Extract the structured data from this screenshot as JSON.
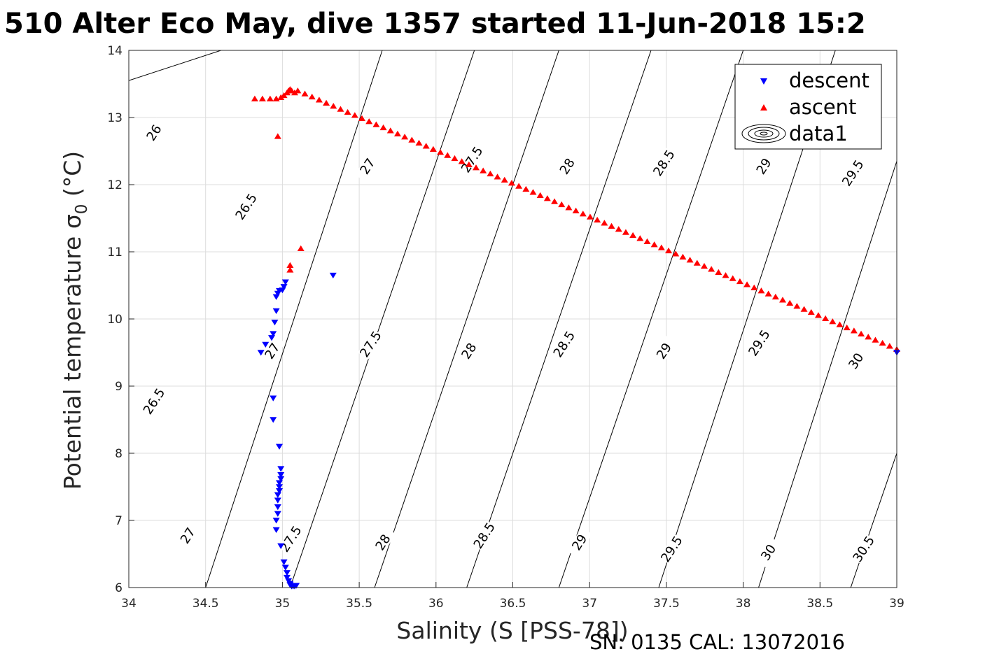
{
  "chart_data": {
    "type": "scatter",
    "title": "510 Alter Eco May, dive 1357 started 11-Jun-2018 15:2",
    "xlabel": "Salinity (S [PSS-78])",
    "ylabel_text": "Potential temperature σ",
    "ylabel_sub": "0",
    "ylabel_unit": " (°C)",
    "footer": "SN: 0135  CAL: 13072016",
    "xlim": [
      34,
      39
    ],
    "ylim": [
      6,
      14
    ],
    "xticks": [
      34,
      34.5,
      35,
      35.5,
      36,
      36.5,
      37,
      37.5,
      38,
      38.5,
      39
    ],
    "xtick_labels": [
      "34",
      "34.5",
      "35",
      "35.5",
      "36",
      "36.5",
      "37",
      "37.5",
      "38",
      "38.5",
      "39"
    ],
    "yticks": [
      6,
      7,
      8,
      9,
      10,
      11,
      12,
      13,
      14
    ],
    "ytick_labels": [
      "6",
      "7",
      "8",
      "9",
      "10",
      "11",
      "12",
      "13",
      "14"
    ],
    "grid": true,
    "legend_position": "top-right",
    "colors": {
      "descent": "#0000ff",
      "ascent": "#ff0000",
      "contour": "#000000",
      "grid": "#dcdcdc",
      "axis": "#262626"
    },
    "series": [
      {
        "name": "descent",
        "marker": "triangle-down",
        "color": "#0000ff",
        "points": [
          [
            35.33,
            10.65
          ],
          [
            35.02,
            10.55
          ],
          [
            35.01,
            10.48
          ],
          [
            35.0,
            10.43
          ],
          [
            34.98,
            10.42
          ],
          [
            34.97,
            10.38
          ],
          [
            34.96,
            10.33
          ],
          [
            34.96,
            10.12
          ],
          [
            34.95,
            9.95
          ],
          [
            34.94,
            9.78
          ],
          [
            34.93,
            9.72
          ],
          [
            34.89,
            9.62
          ],
          [
            34.86,
            9.5
          ],
          [
            34.94,
            8.82
          ],
          [
            34.94,
            8.5
          ],
          [
            34.98,
            8.1
          ],
          [
            34.99,
            7.77
          ],
          [
            34.99,
            7.68
          ],
          [
            34.99,
            7.62
          ],
          [
            34.98,
            7.56
          ],
          [
            34.98,
            7.5
          ],
          [
            34.98,
            7.44
          ],
          [
            34.97,
            7.38
          ],
          [
            34.97,
            7.3
          ],
          [
            34.97,
            7.2
          ],
          [
            34.97,
            7.1
          ],
          [
            34.96,
            7.0
          ],
          [
            34.96,
            6.86
          ],
          [
            34.99,
            6.62
          ],
          [
            35.01,
            6.38
          ],
          [
            35.02,
            6.3
          ],
          [
            35.03,
            6.22
          ],
          [
            35.03,
            6.15
          ],
          [
            35.04,
            6.1
          ],
          [
            35.05,
            6.06
          ],
          [
            35.05,
            6.04
          ],
          [
            35.06,
            6.02
          ],
          [
            35.07,
            6.02
          ],
          [
            35.08,
            6.02
          ],
          [
            35.09,
            6.03
          ],
          [
            39.0,
            9.5
          ]
        ]
      },
      {
        "name": "ascent",
        "marker": "triangle-up",
        "color": "#ff0000",
        "points": [
          [
            34.82,
            13.28
          ],
          [
            34.87,
            13.28
          ],
          [
            34.92,
            13.28
          ],
          [
            34.96,
            13.28
          ],
          [
            34.99,
            13.3
          ],
          [
            35.01,
            13.33
          ],
          [
            35.03,
            13.37
          ],
          [
            35.04,
            13.4
          ],
          [
            35.05,
            13.42
          ],
          [
            35.06,
            13.4
          ],
          [
            35.08,
            13.37
          ],
          [
            34.97,
            12.72
          ],
          [
            35.12,
            11.05
          ],
          [
            35.05,
            10.8
          ],
          [
            35.05,
            10.73
          ]
        ],
        "line": {
          "x_from": 35.1,
          "y_from": 13.4,
          "x_to": 39.0,
          "y_to": 9.55,
          "count": 84
        }
      }
    ],
    "contours": [
      {
        "level": "26",
        "from": [
          34.0,
          13.55
        ],
        "to": [
          34.6,
          14.0
        ],
        "label_at": [
          34.18,
          12.75
        ]
      },
      {
        "level": "26.5",
        "from": [
          34.5,
          6.0
        ],
        "to": [
          35.65,
          14.0
        ],
        "label_at": [
          34.78,
          11.65
        ]
      },
      {
        "level": "27",
        "from": [
          35.05,
          6.0
        ],
        "to": [
          36.25,
          14.0
        ],
        "label_at": [
          35.57,
          12.25
        ]
      },
      {
        "level": "27.5",
        "from": [
          35.6,
          6.0
        ],
        "to": [
          36.8,
          14.0
        ],
        "label_at": [
          36.25,
          12.35
        ]
      },
      {
        "level": "28",
        "from": [
          36.2,
          6.0
        ],
        "to": [
          37.4,
          14.0
        ],
        "label_at": [
          36.87,
          12.25
        ]
      },
      {
        "level": "28.5",
        "from": [
          36.8,
          6.0
        ],
        "to": [
          38.0,
          14.0
        ],
        "label_at": [
          37.5,
          12.3
        ]
      },
      {
        "level": "29",
        "from": [
          37.45,
          6.0
        ],
        "to": [
          38.6,
          14.0
        ],
        "label_at": [
          38.15,
          12.25
        ]
      },
      {
        "level": "29.5",
        "from": [
          38.1,
          6.0
        ],
        "to": [
          39.0,
          12.35
        ],
        "label_at": [
          38.73,
          12.15
        ]
      },
      {
        "level": "30",
        "from": [
          38.7,
          6.0
        ],
        "to": [
          39.0,
          8.0
        ],
        "label_at": [
          38.75,
          9.35
        ]
      },
      {
        "level": "30.5",
        "from": [
          39.3,
          6.0
        ],
        "to": [
          39.0,
          6.5
        ],
        "label_at": [
          38.8,
          6.55
        ]
      }
    ],
    "contour_labels_extra": [
      {
        "text": "26.5",
        "at": [
          34.18,
          8.75
        ]
      },
      {
        "text": "27",
        "at": [
          34.95,
          9.5
        ]
      },
      {
        "text": "27.5",
        "at": [
          35.59,
          9.6
        ]
      },
      {
        "text": "28",
        "at": [
          36.23,
          9.5
        ]
      },
      {
        "text": "28.5",
        "at": [
          36.85,
          9.6
        ]
      },
      {
        "text": "29",
        "at": [
          37.5,
          9.5
        ]
      },
      {
        "text": "29.5",
        "at": [
          38.12,
          9.62
        ]
      },
      {
        "text": "27",
        "at": [
          34.4,
          6.75
        ]
      },
      {
        "text": "27.5",
        "at": [
          35.07,
          6.7
        ]
      },
      {
        "text": "28",
        "at": [
          35.67,
          6.65
        ]
      },
      {
        "text": "28.5",
        "at": [
          36.33,
          6.75
        ]
      },
      {
        "text": "29",
        "at": [
          36.95,
          6.65
        ]
      },
      {
        "text": "29.5",
        "at": [
          37.55,
          6.55
        ]
      },
      {
        "text": "30",
        "at": [
          38.18,
          6.5
        ]
      },
      {
        "text": "30.5",
        "at": [
          38.8,
          6.55
        ]
      }
    ],
    "legend": [
      {
        "label": "descent",
        "marker": "triangle-down"
      },
      {
        "label": "ascent",
        "marker": "triangle-up"
      },
      {
        "label": "data1",
        "marker": "contour-rings"
      }
    ]
  }
}
